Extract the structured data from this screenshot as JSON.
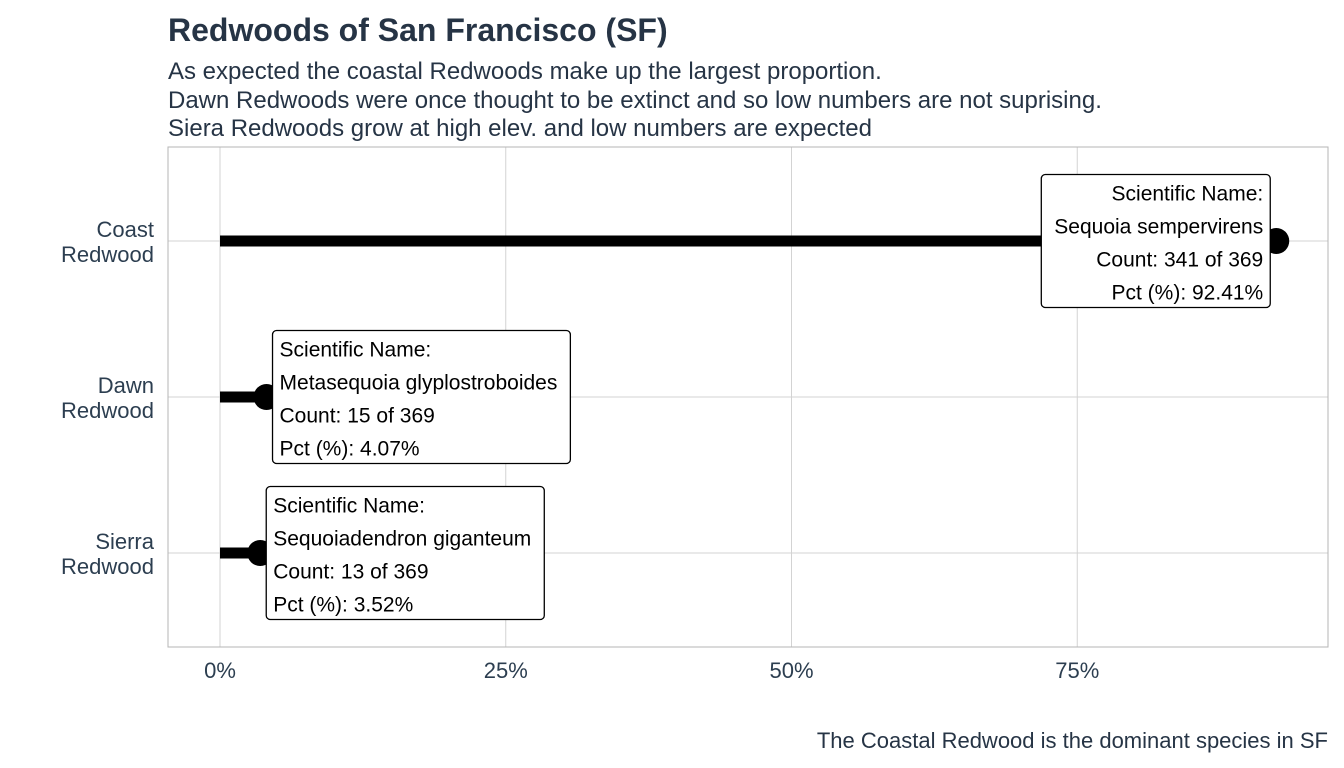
{
  "chart_data": {
    "type": "lollipop",
    "title": "Redwoods of San Francisco (SF)",
    "subtitle": [
      "As expected the coastal Redwoods make up the largest proportion.",
      "Dawn Redwoods were once thought to be extinct and so low numbers are not suprising.",
      "Siera Redwoods grow at high elev. and low numbers are expected"
    ],
    "caption": "The Coastal Redwood is the dominant species in SF",
    "xlim": [
      0,
      0.97
    ],
    "x_ticks": [
      {
        "value": 0,
        "label": "0%"
      },
      {
        "value": 0.25,
        "label": "25%"
      },
      {
        "value": 0.5,
        "label": "50%"
      },
      {
        "value": 0.75,
        "label": "75%"
      }
    ],
    "grid": true,
    "categories": [
      {
        "label": [
          "Coast",
          "Redwood"
        ],
        "value": 0.9241,
        "annotation": [
          "Scientific Name:",
          "Sequoia sempervirens",
          "Count: 341 of 369",
          "Pct (%): 92.41%"
        ]
      },
      {
        "label": [
          "Dawn",
          "Redwood"
        ],
        "value": 0.0407,
        "annotation": [
          "Scientific Name:",
          "Metasequoia glyplostroboides",
          "Count: 15 of 369",
          "Pct (%): 4.07%"
        ]
      },
      {
        "label": [
          "Sierra",
          "Redwood"
        ],
        "value": 0.0352,
        "annotation": [
          "Scientific Name:",
          "Sequoiadendron giganteum",
          "Count: 13 of 369",
          "Pct (%): 3.52%"
        ]
      }
    ]
  }
}
